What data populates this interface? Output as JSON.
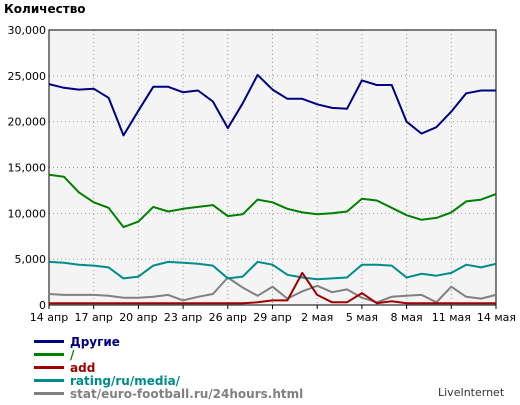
{
  "chart_data": {
    "type": "line",
    "title": "Количество",
    "ylim": [
      0,
      30000
    ],
    "y_ticks": [
      "0",
      "5,000",
      "10,000",
      "15,000",
      "20,000",
      "25,000",
      "30,000"
    ],
    "y_tick_values": [
      0,
      5000,
      10000,
      15000,
      20000,
      25000,
      30000
    ],
    "x_tick_labels": [
      "14 апр",
      "17 апр",
      "20 апр",
      "23 апр",
      "26 апр",
      "29 апр",
      "2 мая",
      "5 мая",
      "8 мая",
      "11 мая",
      "14 мая"
    ],
    "x_tick_index": [
      0,
      3,
      6,
      9,
      12,
      15,
      18,
      21,
      24,
      27,
      30
    ],
    "x": [
      "14 апр",
      "15 апр",
      "16 апр",
      "17 апр",
      "18 апр",
      "19 апр",
      "20 апр",
      "21 апр",
      "22 апр",
      "23 апр",
      "24 апр",
      "25 апр",
      "26 апр",
      "27 апр",
      "28 апр",
      "29 апр",
      "30 апр",
      "1 мая",
      "2 мая",
      "3 мая",
      "4 мая",
      "5 мая",
      "6 мая",
      "7 мая",
      "8 мая",
      "9 мая",
      "10 мая",
      "11 мая",
      "12 мая",
      "13 мая",
      "14 мая"
    ],
    "grid": true,
    "legend_position": "bottom-left",
    "series": [
      {
        "name": "Другие",
        "color": "#000080",
        "values": [
          24100,
          23700,
          23500,
          23600,
          22600,
          18500,
          21200,
          23800,
          23800,
          23200,
          23400,
          22200,
          19300,
          22000,
          25100,
          23500,
          22500,
          22500,
          21900,
          21500,
          21400,
          24500,
          24000,
          24000,
          20000,
          18700,
          19400,
          21100,
          23100,
          23400,
          23400
        ]
      },
      {
        "name": "/",
        "color": "#008000",
        "values": [
          14200,
          14000,
          12300,
          11200,
          10600,
          8500,
          9100,
          10700,
          10200,
          10500,
          10700,
          10900,
          9700,
          9900,
          11500,
          11200,
          10500,
          10100,
          9900,
          10000,
          10200,
          11600,
          11400,
          10600,
          9800,
          9300,
          9500,
          10100,
          11300,
          11500,
          12100
        ]
      },
      {
        "name": "add",
        "color": "#a00000",
        "values": [
          200,
          200,
          200,
          200,
          200,
          200,
          200,
          200,
          200,
          200,
          200,
          200,
          200,
          200,
          300,
          500,
          500,
          3500,
          1100,
          300,
          300,
          1300,
          200,
          400,
          200,
          200,
          200,
          200,
          200,
          200,
          200
        ]
      },
      {
        "name": "rating/ru/media/",
        "color": "#008b8b",
        "values": [
          4700,
          4600,
          4400,
          4300,
          4100,
          2900,
          3100,
          4300,
          4700,
          4600,
          4500,
          4300,
          2900,
          3100,
          4700,
          4400,
          3300,
          3000,
          2800,
          2900,
          3000,
          4400,
          4400,
          4300,
          3000,
          3400,
          3200,
          3500,
          4400,
          4100,
          4500
        ]
      },
      {
        "name": "stat/euro-football.ru/24hours.html",
        "color": "#808080",
        "values": [
          1200,
          1100,
          1100,
          1100,
          1000,
          800,
          800,
          900,
          1100,
          500,
          900,
          1200,
          3000,
          1900,
          1000,
          2000,
          700,
          1500,
          2100,
          1400,
          1700,
          800,
          300,
          900,
          1000,
          1100,
          300,
          2000,
          900,
          700,
          1100
        ]
      }
    ]
  },
  "footer": {
    "credit": "LiveInternet"
  }
}
